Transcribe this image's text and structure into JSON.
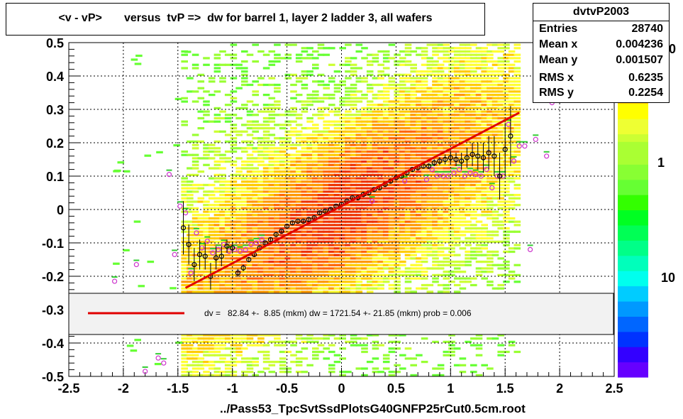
{
  "title": "<v - vP>       versus  tvP =>  dw for barrel 1, layer 2 ladder 3, all wafers",
  "footer": "../Pass53_TpcSvtSsdPlotsG40GNFP25rCut0.5cm.root",
  "stats": {
    "name": "dvtvP2003",
    "rows": [
      {
        "key": "Entries",
        "value": "28740"
      },
      {
        "key": "Mean x",
        "value": "0.004236"
      },
      {
        "key": "Mean y",
        "value": "0.001507"
      },
      {
        "key": "RMS x",
        "value": "0.6235"
      },
      {
        "key": "RMS y",
        "value": "0.2254"
      }
    ]
  },
  "fit_label": "dv =   82.84 +-  8.85 (mkm) dw = 1721.54 +- 21.85 (mkm) prob = 0.006",
  "colorbar_labels": [
    "0",
    "1",
    "10"
  ],
  "colors": {
    "fit_line": "#e00000",
    "profile_marker": "#000000",
    "alt_marker": "#cc33cc",
    "alt_error": "#33cc33"
  },
  "chart_data": {
    "type": "heatmap",
    "title": "<v - vP>       versus  tvP =>  dw for barrel 1, layer 2 ladder 3, all wafers",
    "xlabel": "",
    "ylabel": "",
    "xlim": [
      -2.5,
      2.5
    ],
    "ylim": [
      -0.5,
      0.5
    ],
    "x_ticks": [
      -2.5,
      -2,
      -1.5,
      -1,
      -0.5,
      0,
      0.5,
      1,
      1.5,
      2,
      2.5
    ],
    "x_tick_labels": [
      "-2.5",
      "-2",
      "-1.5",
      "-1",
      "-0.5",
      "0",
      "0.5",
      "1",
      "1.5",
      "2",
      "2.5"
    ],
    "y_ticks": [
      -0.5,
      -0.4,
      -0.3,
      -0.2,
      -0.1,
      0,
      0.1,
      0.2,
      0.3,
      0.4,
      0.5
    ],
    "y_tick_labels": [
      "-0.5",
      "-0.4",
      "-0.3",
      "-0.2",
      "-0.1",
      "0",
      "0.1",
      "0.2",
      "0.3",
      "0.4",
      "0.5"
    ],
    "grid": true,
    "legend_position": "bottom-center",
    "fit_line": {
      "x": [
        -1.43,
        1.63
      ],
      "y": [
        -0.235,
        0.29
      ]
    },
    "profile": {
      "x": [
        -1.45,
        -1.4,
        -1.35,
        -1.3,
        -1.25,
        -1.2,
        -1.15,
        -1.1,
        -1.05,
        -1.0,
        -0.95,
        -0.9,
        -0.85,
        -0.8,
        -0.75,
        -0.7,
        -0.65,
        -0.6,
        -0.55,
        -0.5,
        -0.45,
        -0.4,
        -0.35,
        -0.3,
        -0.25,
        -0.2,
        -0.15,
        -0.1,
        -0.05,
        0.0,
        0.05,
        0.1,
        0.15,
        0.2,
        0.25,
        0.3,
        0.35,
        0.4,
        0.45,
        0.5,
        0.55,
        0.6,
        0.65,
        0.7,
        0.75,
        0.8,
        0.85,
        0.9,
        0.95,
        1.0,
        1.05,
        1.1,
        1.15,
        1.2,
        1.25,
        1.3,
        1.35,
        1.4,
        1.45,
        1.5,
        1.55
      ],
      "y": [
        -0.055,
        -0.105,
        -0.165,
        -0.135,
        -0.14,
        -0.2,
        -0.145,
        -0.14,
        -0.11,
        -0.115,
        -0.19,
        -0.175,
        -0.15,
        -0.135,
        -0.115,
        -0.1,
        -0.09,
        -0.075,
        -0.065,
        -0.05,
        -0.04,
        -0.035,
        -0.035,
        -0.03,
        -0.025,
        -0.01,
        -0.005,
        0.0,
        0.01,
        0.015,
        0.025,
        0.035,
        0.035,
        0.045,
        0.05,
        0.06,
        0.065,
        0.075,
        0.085,
        0.095,
        0.1,
        0.11,
        0.12,
        0.125,
        0.13,
        0.13,
        0.14,
        0.145,
        0.15,
        0.155,
        0.15,
        0.145,
        0.155,
        0.165,
        0.16,
        0.155,
        0.17,
        0.16,
        0.1,
        0.18,
        0.22
      ],
      "yerr": [
        0.08,
        0.06,
        0.05,
        0.045,
        0.04,
        0.04,
        0.035,
        0.03,
        0.02,
        0.015,
        0.012,
        0.01,
        0.008,
        0.007,
        0.006,
        0.005,
        0.005,
        0.005,
        0.005,
        0.005,
        0.005,
        0.005,
        0.005,
        0.005,
        0.005,
        0.005,
        0.005,
        0.005,
        0.005,
        0.005,
        0.005,
        0.005,
        0.005,
        0.005,
        0.005,
        0.005,
        0.005,
        0.005,
        0.005,
        0.005,
        0.005,
        0.005,
        0.006,
        0.006,
        0.007,
        0.008,
        0.01,
        0.012,
        0.015,
        0.02,
        0.02,
        0.025,
        0.03,
        0.035,
        0.04,
        0.045,
        0.05,
        0.06,
        0.07,
        0.08,
        0.09
      ]
    },
    "alt_points": {
      "x": [
        -2.08,
        -1.88,
        -1.8,
        -1.68,
        -1.63,
        -1.58,
        -1.53,
        -1.48,
        -1.43,
        -1.38,
        -1.33,
        -1.28,
        -1.23,
        -1.18,
        -1.13,
        -1.08,
        -1.03,
        -0.98,
        -0.93,
        -0.88,
        -0.83,
        -0.78,
        -0.73,
        0.28,
        0.58,
        0.78,
        0.83,
        0.88,
        0.93,
        0.98,
        1.03,
        1.08,
        1.13,
        1.18,
        1.23,
        1.28,
        1.33,
        1.38,
        1.43,
        1.48,
        1.53,
        1.58,
        1.63,
        1.68,
        1.73,
        1.78,
        1.88,
        1.93
      ],
      "y": [
        -0.215,
        -0.165,
        -0.485,
        -0.445,
        -0.46,
        0.105,
        -0.135,
        0.01,
        -0.01,
        -0.19,
        -0.07,
        -0.115,
        -0.095,
        -0.13,
        -0.12,
        -0.105,
        -0.125,
        -0.12,
        -0.125,
        -0.12,
        -0.105,
        -0.1,
        -0.09,
        0.025,
        0.085,
        0.09,
        0.12,
        0.1,
        0.1,
        0.1,
        0.11,
        0.12,
        0.1,
        0.11,
        0.105,
        0.1,
        0.12,
        0.065,
        0.1,
        0.1,
        0.255,
        0.145,
        0.19,
        0.19,
        -0.12,
        0.21,
        0.16,
        0.32
      ]
    }
  }
}
